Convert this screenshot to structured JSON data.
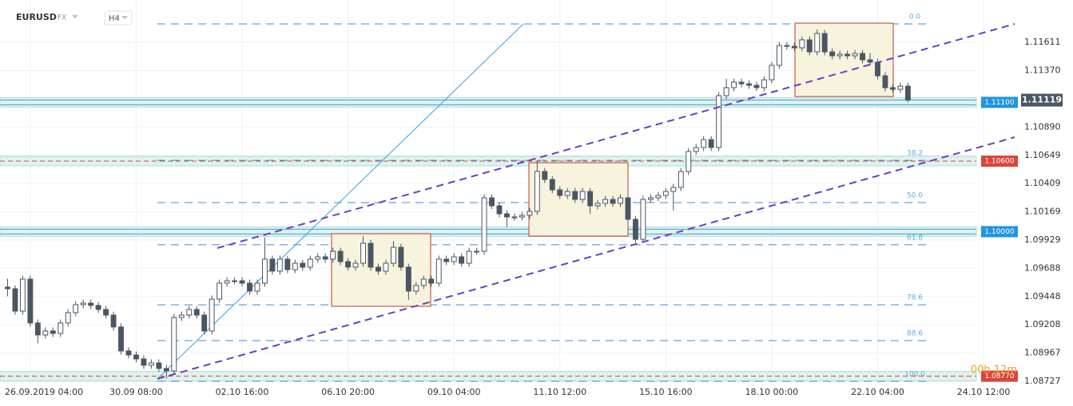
{
  "header": {
    "symbol": "EURUSD",
    "market": "FX",
    "timeframe": "H4"
  },
  "chart_data": {
    "type": "candlestick",
    "timer": "00h 12m",
    "x": [
      0,
      1,
      2,
      3,
      4,
      5,
      6,
      7,
      8,
      9,
      10,
      11,
      12,
      13,
      14,
      15,
      16,
      17,
      18,
      19,
      20,
      21,
      22,
      23,
      24,
      25,
      26,
      27,
      28,
      29,
      30,
      31,
      32,
      33,
      34,
      35,
      36,
      37,
      38,
      39,
      40,
      41,
      42,
      43,
      44,
      45,
      46,
      47,
      48,
      49,
      50,
      51,
      52,
      53,
      54,
      55,
      56,
      57,
      58,
      59,
      60,
      61,
      62,
      63,
      64,
      65,
      66,
      67,
      68,
      69,
      70,
      71,
      72,
      73,
      74,
      75,
      76,
      77,
      78,
      79,
      80,
      81,
      82,
      83,
      84,
      85,
      86,
      87,
      88,
      89,
      90,
      91,
      92,
      93,
      94,
      95,
      96,
      97,
      98,
      99,
      100,
      101,
      102,
      103,
      104,
      105,
      106,
      107,
      108,
      109,
      110,
      111,
      112,
      113,
      114,
      115,
      116,
      117,
      118,
      119
    ],
    "open": [
      1.09528,
      1.09514,
      1.09324,
      1.09596,
      1.09223,
      1.09121,
      1.09155,
      1.09134,
      1.09223,
      1.09311,
      1.09379,
      1.09392,
      1.09372,
      1.09338,
      1.0929,
      1.09189,
      1.08985,
      1.08951,
      1.08917,
      1.08863,
      1.08883,
      1.08836,
      1.08815,
      1.0927,
      1.0929,
      1.09338,
      1.0929,
      1.09155,
      1.09426,
      1.09562,
      1.09582,
      1.09582,
      1.09562,
      1.09494,
      1.09562,
      1.09766,
      1.09664,
      1.09766,
      1.09677,
      1.09731,
      1.09698,
      1.09766,
      1.09786,
      1.09766,
      1.09833,
      1.09745,
      1.09698,
      1.09731,
      1.09901,
      1.09698,
      1.09664,
      1.09731,
      1.09867,
      1.09698,
      1.09494,
      1.09542,
      1.09596,
      1.09562,
      1.09766,
      1.09745,
      1.09786,
      1.09731,
      1.09833,
      1.09833,
      1.10288,
      1.1022,
      1.10152,
      1.10125,
      1.10125,
      1.10139,
      1.10173,
      1.10512,
      1.10444,
      1.10356,
      1.10308,
      1.10342,
      1.10274,
      1.10342,
      1.1022,
      1.10241,
      1.10274,
      1.10241,
      1.10288,
      1.10105,
      1.09935,
      1.10274,
      1.10288,
      1.10308,
      1.10342,
      1.10376,
      1.10512,
      1.10682,
      1.10716,
      1.10783,
      1.10716,
      1.11157,
      1.11225,
      1.11272,
      1.11258,
      1.11245,
      1.11225,
      1.11292,
      1.11415,
      1.11584,
      1.11577,
      1.11564,
      1.11632,
      1.1153,
      1.11686,
      1.1153,
      1.11496,
      1.1151,
      1.11496,
      1.11516,
      1.11462,
      1.11442,
      1.11326,
      1.11225,
      1.11211,
      1.11238
    ],
    "high": [
      1.096,
      1.09544,
      1.09626,
      1.09626,
      1.09253,
      1.09185,
      1.09185,
      1.09253,
      1.09341,
      1.09409,
      1.09422,
      1.09422,
      1.09402,
      1.09368,
      1.0932,
      1.09219,
      1.09015,
      1.08981,
      1.08947,
      1.08913,
      1.08913,
      1.08866,
      1.093,
      1.0932,
      1.09368,
      1.09368,
      1.0932,
      1.09456,
      1.09592,
      1.09612,
      1.09612,
      1.09612,
      1.09592,
      1.09592,
      1.0995,
      1.09796,
      1.09796,
      1.09796,
      1.09761,
      1.09761,
      1.09796,
      1.09816,
      1.09816,
      1.09863,
      1.09863,
      1.09775,
      1.09761,
      1.0996,
      1.09931,
      1.09728,
      1.09761,
      1.0992,
      1.09897,
      1.09728,
      1.09572,
      1.09626,
      1.09626,
      1.09796,
      1.09796,
      1.09816,
      1.09816,
      1.09863,
      1.09863,
      1.10318,
      1.10318,
      1.1025,
      1.10182,
      1.10155,
      1.10169,
      1.10203,
      1.106,
      1.10542,
      1.10474,
      1.10386,
      1.10372,
      1.10372,
      1.10372,
      1.10372,
      1.10271,
      1.10304,
      1.10304,
      1.10318,
      1.10318,
      1.10135,
      1.10304,
      1.10318,
      1.10338,
      1.10372,
      1.10406,
      1.10542,
      1.10712,
      1.10746,
      1.10813,
      1.10813,
      1.11187,
      1.113,
      1.11302,
      1.11302,
      1.11288,
      1.11275,
      1.11322,
      1.11445,
      1.11614,
      1.11614,
      1.11607,
      1.11662,
      1.11662,
      1.1172,
      1.11716,
      1.1156,
      1.1154,
      1.1154,
      1.11546,
      1.11546,
      1.1152,
      1.11472,
      1.11356,
      1.11255,
      1.11268,
      1.11268
    ],
    "low": [
      1.0945,
      1.09294,
      1.09294,
      1.09193,
      1.0905,
      1.09091,
      1.09104,
      1.09104,
      1.09193,
      1.09281,
      1.09349,
      1.09342,
      1.09308,
      1.0926,
      1.09159,
      1.08955,
      1.08921,
      1.08887,
      1.08833,
      1.08833,
      1.08806,
      1.0875,
      1.08785,
      1.0924,
      1.0926,
      1.0926,
      1.09125,
      1.09125,
      1.09396,
      1.09532,
      1.09552,
      1.09532,
      1.09464,
      1.09464,
      1.09532,
      1.09634,
      1.09634,
      1.09647,
      1.09647,
      1.09668,
      1.09668,
      1.09736,
      1.09736,
      1.09736,
      1.09715,
      1.09668,
      1.09668,
      1.09701,
      1.09668,
      1.09634,
      1.09634,
      1.09701,
      1.09668,
      1.0942,
      1.09464,
      1.09512,
      1.09532,
      1.09532,
      1.09715,
      1.09715,
      1.09701,
      1.09701,
      1.09803,
      1.09803,
      1.1019,
      1.10122,
      1.1004,
      1.10095,
      1.10095,
      1.10109,
      1.10143,
      1.10414,
      1.10326,
      1.10278,
      1.10278,
      1.10244,
      1.10244,
      1.1015,
      1.1019,
      1.10211,
      1.10211,
      1.10211,
      1.10075,
      1.09905,
      1.09905,
      1.10244,
      1.10258,
      1.10278,
      1.1018,
      1.10346,
      1.10482,
      1.10652,
      1.10686,
      1.10686,
      1.10686,
      1.11127,
      1.11195,
      1.11228,
      1.11215,
      1.11195,
      1.11195,
      1.11262,
      1.11385,
      1.11547,
      1.11534,
      1.11534,
      1.115,
      1.115,
      1.115,
      1.11466,
      1.11466,
      1.11466,
      1.11466,
      1.11432,
      1.11412,
      1.11296,
      1.11195,
      1.11181,
      1.11181,
      1.111
    ],
    "close": [
      1.09514,
      1.09324,
      1.09596,
      1.09223,
      1.09121,
      1.09155,
      1.09134,
      1.09223,
      1.09311,
      1.09379,
      1.09392,
      1.09372,
      1.09338,
      1.0929,
      1.09189,
      1.08985,
      1.08951,
      1.08917,
      1.08863,
      1.08883,
      1.08836,
      1.08815,
      1.0927,
      1.0929,
      1.09338,
      1.0929,
      1.09155,
      1.09426,
      1.09562,
      1.09582,
      1.09582,
      1.09562,
      1.09494,
      1.09562,
      1.09766,
      1.09664,
      1.09766,
      1.09677,
      1.09731,
      1.09698,
      1.09766,
      1.09786,
      1.09766,
      1.09833,
      1.09745,
      1.09698,
      1.09731,
      1.09901,
      1.09698,
      1.09664,
      1.09731,
      1.09867,
      1.09698,
      1.09494,
      1.09542,
      1.09596,
      1.09562,
      1.09766,
      1.09745,
      1.09786,
      1.09731,
      1.09833,
      1.09833,
      1.10288,
      1.1022,
      1.10152,
      1.10125,
      1.10125,
      1.10139,
      1.10173,
      1.10512,
      1.10444,
      1.10356,
      1.10308,
      1.10342,
      1.10274,
      1.10342,
      1.1022,
      1.10241,
      1.10274,
      1.10241,
      1.10288,
      1.10105,
      1.09935,
      1.10274,
      1.10288,
      1.10308,
      1.10342,
      1.10376,
      1.10512,
      1.10682,
      1.10716,
      1.10783,
      1.10716,
      1.11157,
      1.11225,
      1.11272,
      1.11258,
      1.11245,
      1.11225,
      1.11292,
      1.11415,
      1.11584,
      1.11577,
      1.11564,
      1.11632,
      1.1153,
      1.11686,
      1.1153,
      1.11496,
      1.1151,
      1.11496,
      1.11516,
      1.11462,
      1.11442,
      1.11326,
      1.11225,
      1.11211,
      1.11238,
      1.11119
    ],
    "up_color": "#ffffff",
    "down_color": "#4a5663",
    "outline_color": "#4a5663",
    "xlim": [
      -1,
      131
    ],
    "xticks": [
      {
        "value": 3,
        "label": "26.09.2019 04:00"
      },
      {
        "value": 17,
        "label": "30.09 08:00"
      },
      {
        "value": 31,
        "label": "02.10 16:00"
      },
      {
        "value": 45,
        "label": "06.10 20:00"
      },
      {
        "value": 59,
        "label": "09.10 04:00"
      },
      {
        "value": 73,
        "label": "11.10 12:00"
      },
      {
        "value": 87,
        "label": "15.10 16:00"
      },
      {
        "value": 101,
        "label": "18.10 00:00"
      },
      {
        "value": 115,
        "label": "22.10 04:00"
      },
      {
        "value": 129,
        "label": "24.10 12:00"
      }
    ],
    "ylim": [
      1.08693,
      1.11971
    ],
    "yticks": [
      1.11611,
      {
        "value": 1.1137,
        "label": "1.11370"
      },
      {
        "value": 1.1089,
        "label": "1.10890"
      },
      1.10649,
      1.10409,
      1.10169,
      1.09929,
      1.09688,
      1.09448,
      1.09208,
      1.08967,
      1.08727
    ],
    "grid": true,
    "current_price": 1.11119,
    "current_color": "#4a5663",
    "price_tags": [
      {
        "value": 1.111,
        "label": "1.11100",
        "color": "#2196e0"
      },
      {
        "value": 1.106,
        "label": "1.10600",
        "color": "#d9463c"
      },
      {
        "value": 1.1,
        "label": "1.10000",
        "color": "#2196e0"
      },
      {
        "value": 1.0877,
        "label": "1.08770",
        "color": "#d9463c"
      }
    ],
    "fib_levels": [
      {
        "value": 1.11767,
        "label": "0.0"
      },
      {
        "value": 1.10606,
        "label": "38.2"
      },
      {
        "value": 1.10247,
        "label": "50.0"
      },
      {
        "value": 1.09888,
        "label": "61.8"
      },
      {
        "value": 1.09378,
        "label": "78.6"
      },
      {
        "value": 1.09073,
        "label": "88.6"
      },
      {
        "value": 1.08727,
        "label": "100.0"
      }
    ]
  }
}
